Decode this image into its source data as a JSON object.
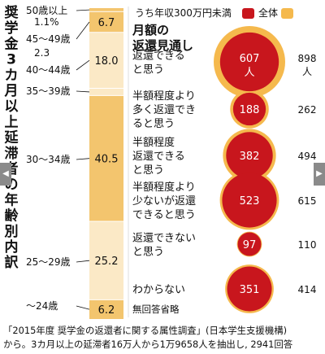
{
  "chart_data": [
    {
      "type": "bar",
      "stacked": true,
      "orientation": "vertical-single-column",
      "title": "奨学金3カ月以上延滞者の年齢別内訳",
      "unit": "%",
      "categories": [
        "50歳以上",
        "45〜49歳",
        "40〜44歳",
        "35〜39歳",
        "30〜34歳",
        "25〜29歳",
        "〜24歳"
      ],
      "values": [
        1.1,
        6.7,
        18.0,
        2.3,
        40.5,
        25.2,
        6.2
      ],
      "value_labels": [
        "1.1%",
        "6.7",
        "18.0",
        "2.3",
        "40.5",
        "25.2",
        "6.2"
      ],
      "colors": [
        "#f3c56e",
        "#f3c56e",
        "#fbe9c6",
        "#fbe9c6",
        "#f3c56e",
        "#fbe9c6",
        "#f3c56e"
      ]
    },
    {
      "type": "bubble",
      "title": "月額の返還見通し",
      "legend": {
        "series_a": "うち年収300万円未満",
        "series_b": "全体",
        "position": "top"
      },
      "categories": [
        "返還できると思う",
        "半額程度より多く返還できると思う",
        "半額程度返還できると思う",
        "半額程度より少ないが返還できると思う",
        "返還できないと思う",
        "わからない"
      ],
      "category_lines": [
        [
          "返還できる",
          "と思う"
        ],
        [
          "半額程度より",
          "多く返還でき",
          "ると思う"
        ],
        [
          "半額程度",
          "返還できる",
          "と思う"
        ],
        [
          "半額程度より",
          "少ないが返還",
          "できると思う"
        ],
        [
          "返還できない",
          "と思う"
        ],
        [
          "わからない"
        ]
      ],
      "series": [
        {
          "name": "うち年収300万円未満",
          "values": [
            607,
            188,
            382,
            523,
            97,
            351
          ],
          "color": "#c8161d"
        },
        {
          "name": "全体",
          "values": [
            898,
            262,
            494,
            615,
            110,
            414
          ],
          "color": "#f5b94d"
        }
      ],
      "first_unit": "人",
      "note": "無回答省略"
    }
  ],
  "source": {
    "line1": "「2015年度 奨学金の返還者に関する属性調査」(日本学生支援機構)",
    "line2": "から。3カ月以上の延滞者16万人から1万9658人を抽出し, 2941回答"
  }
}
